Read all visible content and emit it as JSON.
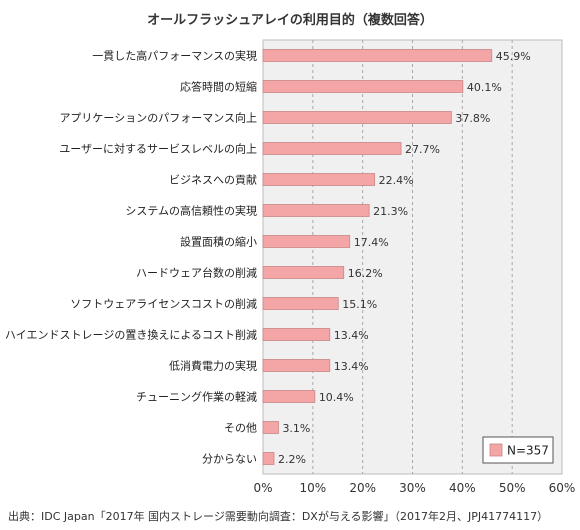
{
  "chart_data": {
    "type": "bar",
    "orientation": "horizontal",
    "title": "オールフラッシュアレイの利用目的（複数回答）",
    "categories": [
      "一貫した高パフォーマンスの実現",
      "応答時間の短縮",
      "アプリケーションのパフォーマンス向上",
      "ユーザーに対するサービスレベルの向上",
      "ビジネスへの貢献",
      "システムの高信頼性の実現",
      "設置面積の縮小",
      "ハードウェア台数の削減",
      "ソフトウェアライセンスコストの削減",
      "ハイエンドストレージの置き換えによるコスト削減",
      "低消費電力の実現",
      "チューニング作業の軽減",
      "その他",
      "分からない"
    ],
    "values": [
      45.9,
      40.1,
      37.8,
      27.7,
      22.4,
      21.3,
      17.4,
      16.2,
      15.1,
      13.4,
      13.4,
      10.4,
      3.1,
      2.2
    ],
    "value_labels": [
      "45.9%",
      "40.1%",
      "37.8%",
      "27.7%",
      "22.4%",
      "21.3%",
      "17.4%",
      "16.2%",
      "15.1%",
      "13.4%",
      "13.4%",
      "10.4%",
      "3.1%",
      "2.2%"
    ],
    "xlim": [
      0,
      60
    ],
    "x_ticks": [
      0,
      10,
      20,
      30,
      40,
      50,
      60
    ],
    "x_tick_labels": [
      "0%",
      "10%",
      "20%",
      "30%",
      "40%",
      "50%",
      "60%"
    ],
    "grid": "vertical dashed",
    "legend": {
      "label": "N=357",
      "placement": "bottom-right"
    },
    "colors": {
      "bar": "#f4a6a6",
      "bar_border": "#c98686",
      "plot_bg": "#f0f0f0"
    }
  },
  "source_note": "出典：IDC Japan「2017年 国内ストレージ需要動向調査：DXが与える影響」（2017年2月、JPJ41774117）"
}
